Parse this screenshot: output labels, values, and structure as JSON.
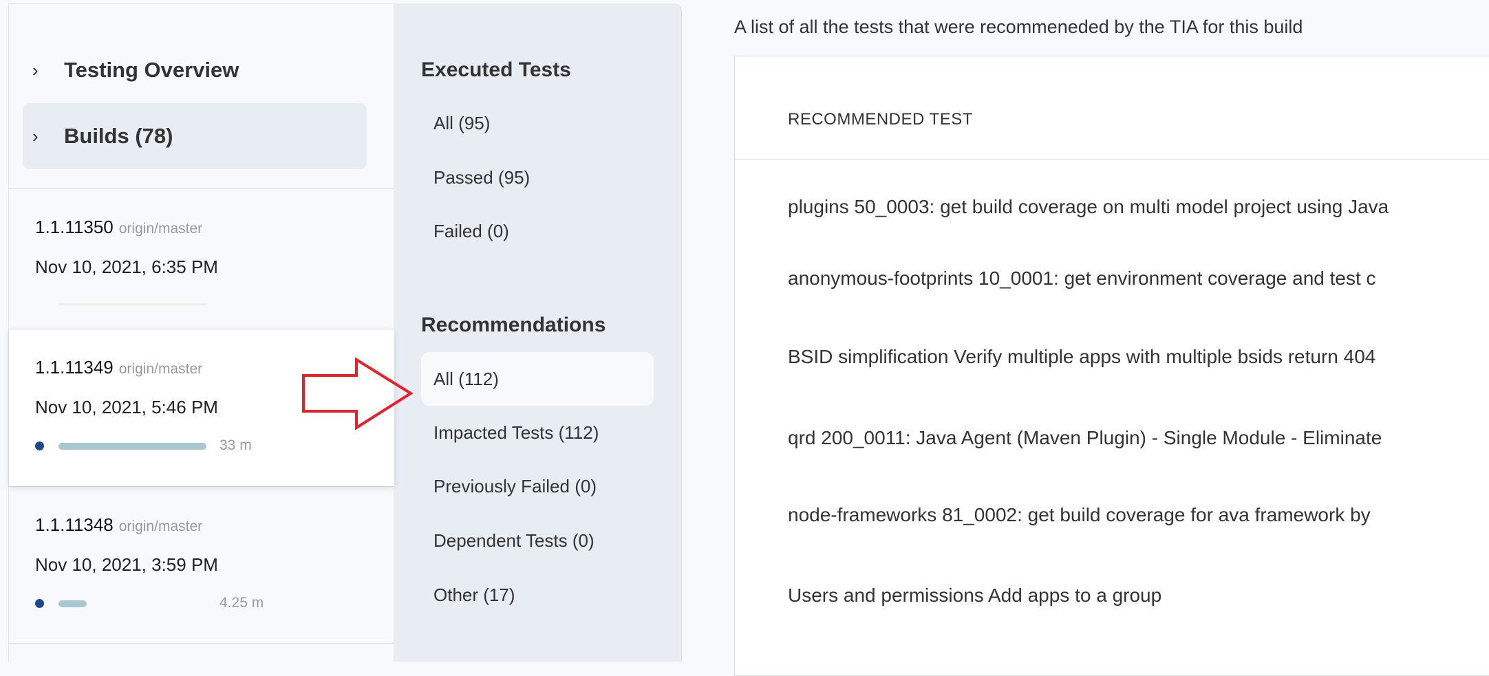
{
  "sidebar": {
    "nav": [
      {
        "label": "Testing Overview",
        "icon": "chevron-right-icon"
      },
      {
        "label": "Builds (78)",
        "icon": "chevron-right-icon",
        "selected": true
      }
    ],
    "builds": [
      {
        "version": "1.1.11350",
        "branch": "origin/master",
        "date": "Nov 10, 2021, 6:35 PM",
        "duration": "",
        "progress": 0
      },
      {
        "version": "1.1.11349",
        "branch": "origin/master",
        "date": "Nov 10, 2021, 5:46 PM",
        "duration": "33 m",
        "progress": 1.0,
        "selected": true
      },
      {
        "version": "1.1.11348",
        "branch": "origin/master",
        "date": "Nov 10, 2021, 3:59 PM",
        "duration": "4.25 m",
        "progress": 0.19
      }
    ],
    "colors": {
      "dot": "#1f4a8a",
      "bar": "#a9c7cf"
    }
  },
  "filters": {
    "executed": {
      "title": "Executed Tests",
      "items": [
        "All (95)",
        "Passed (95)",
        "Failed (0)"
      ]
    },
    "recommendations": {
      "title": "Recommendations",
      "items": [
        "All (112)",
        "Impacted Tests (112)",
        "Previously Failed (0)",
        "Dependent Tests (0)",
        "Other (17)"
      ],
      "selected": "All (112)"
    }
  },
  "annotation": {
    "type": "arrow-right",
    "color": "#e8202a"
  },
  "main": {
    "description": "A list of all the tests that were recommeneded by the TIA for this build",
    "table": {
      "header": "RECOMMENDED TEST",
      "rows": [
        "plugins 50_0003: get build coverage on multi model project using Java",
        "anonymous-footprints 10_0001: get environment coverage and test c",
        "BSID simplification Verify multiple apps with multiple bsids return 404",
        "qrd 200_0011: Java Agent (Maven Plugin) - Single Module - Eliminate",
        "node-frameworks 81_0002: get build coverage for ava framework by",
        "Users and permissions Add apps to a group"
      ]
    }
  }
}
